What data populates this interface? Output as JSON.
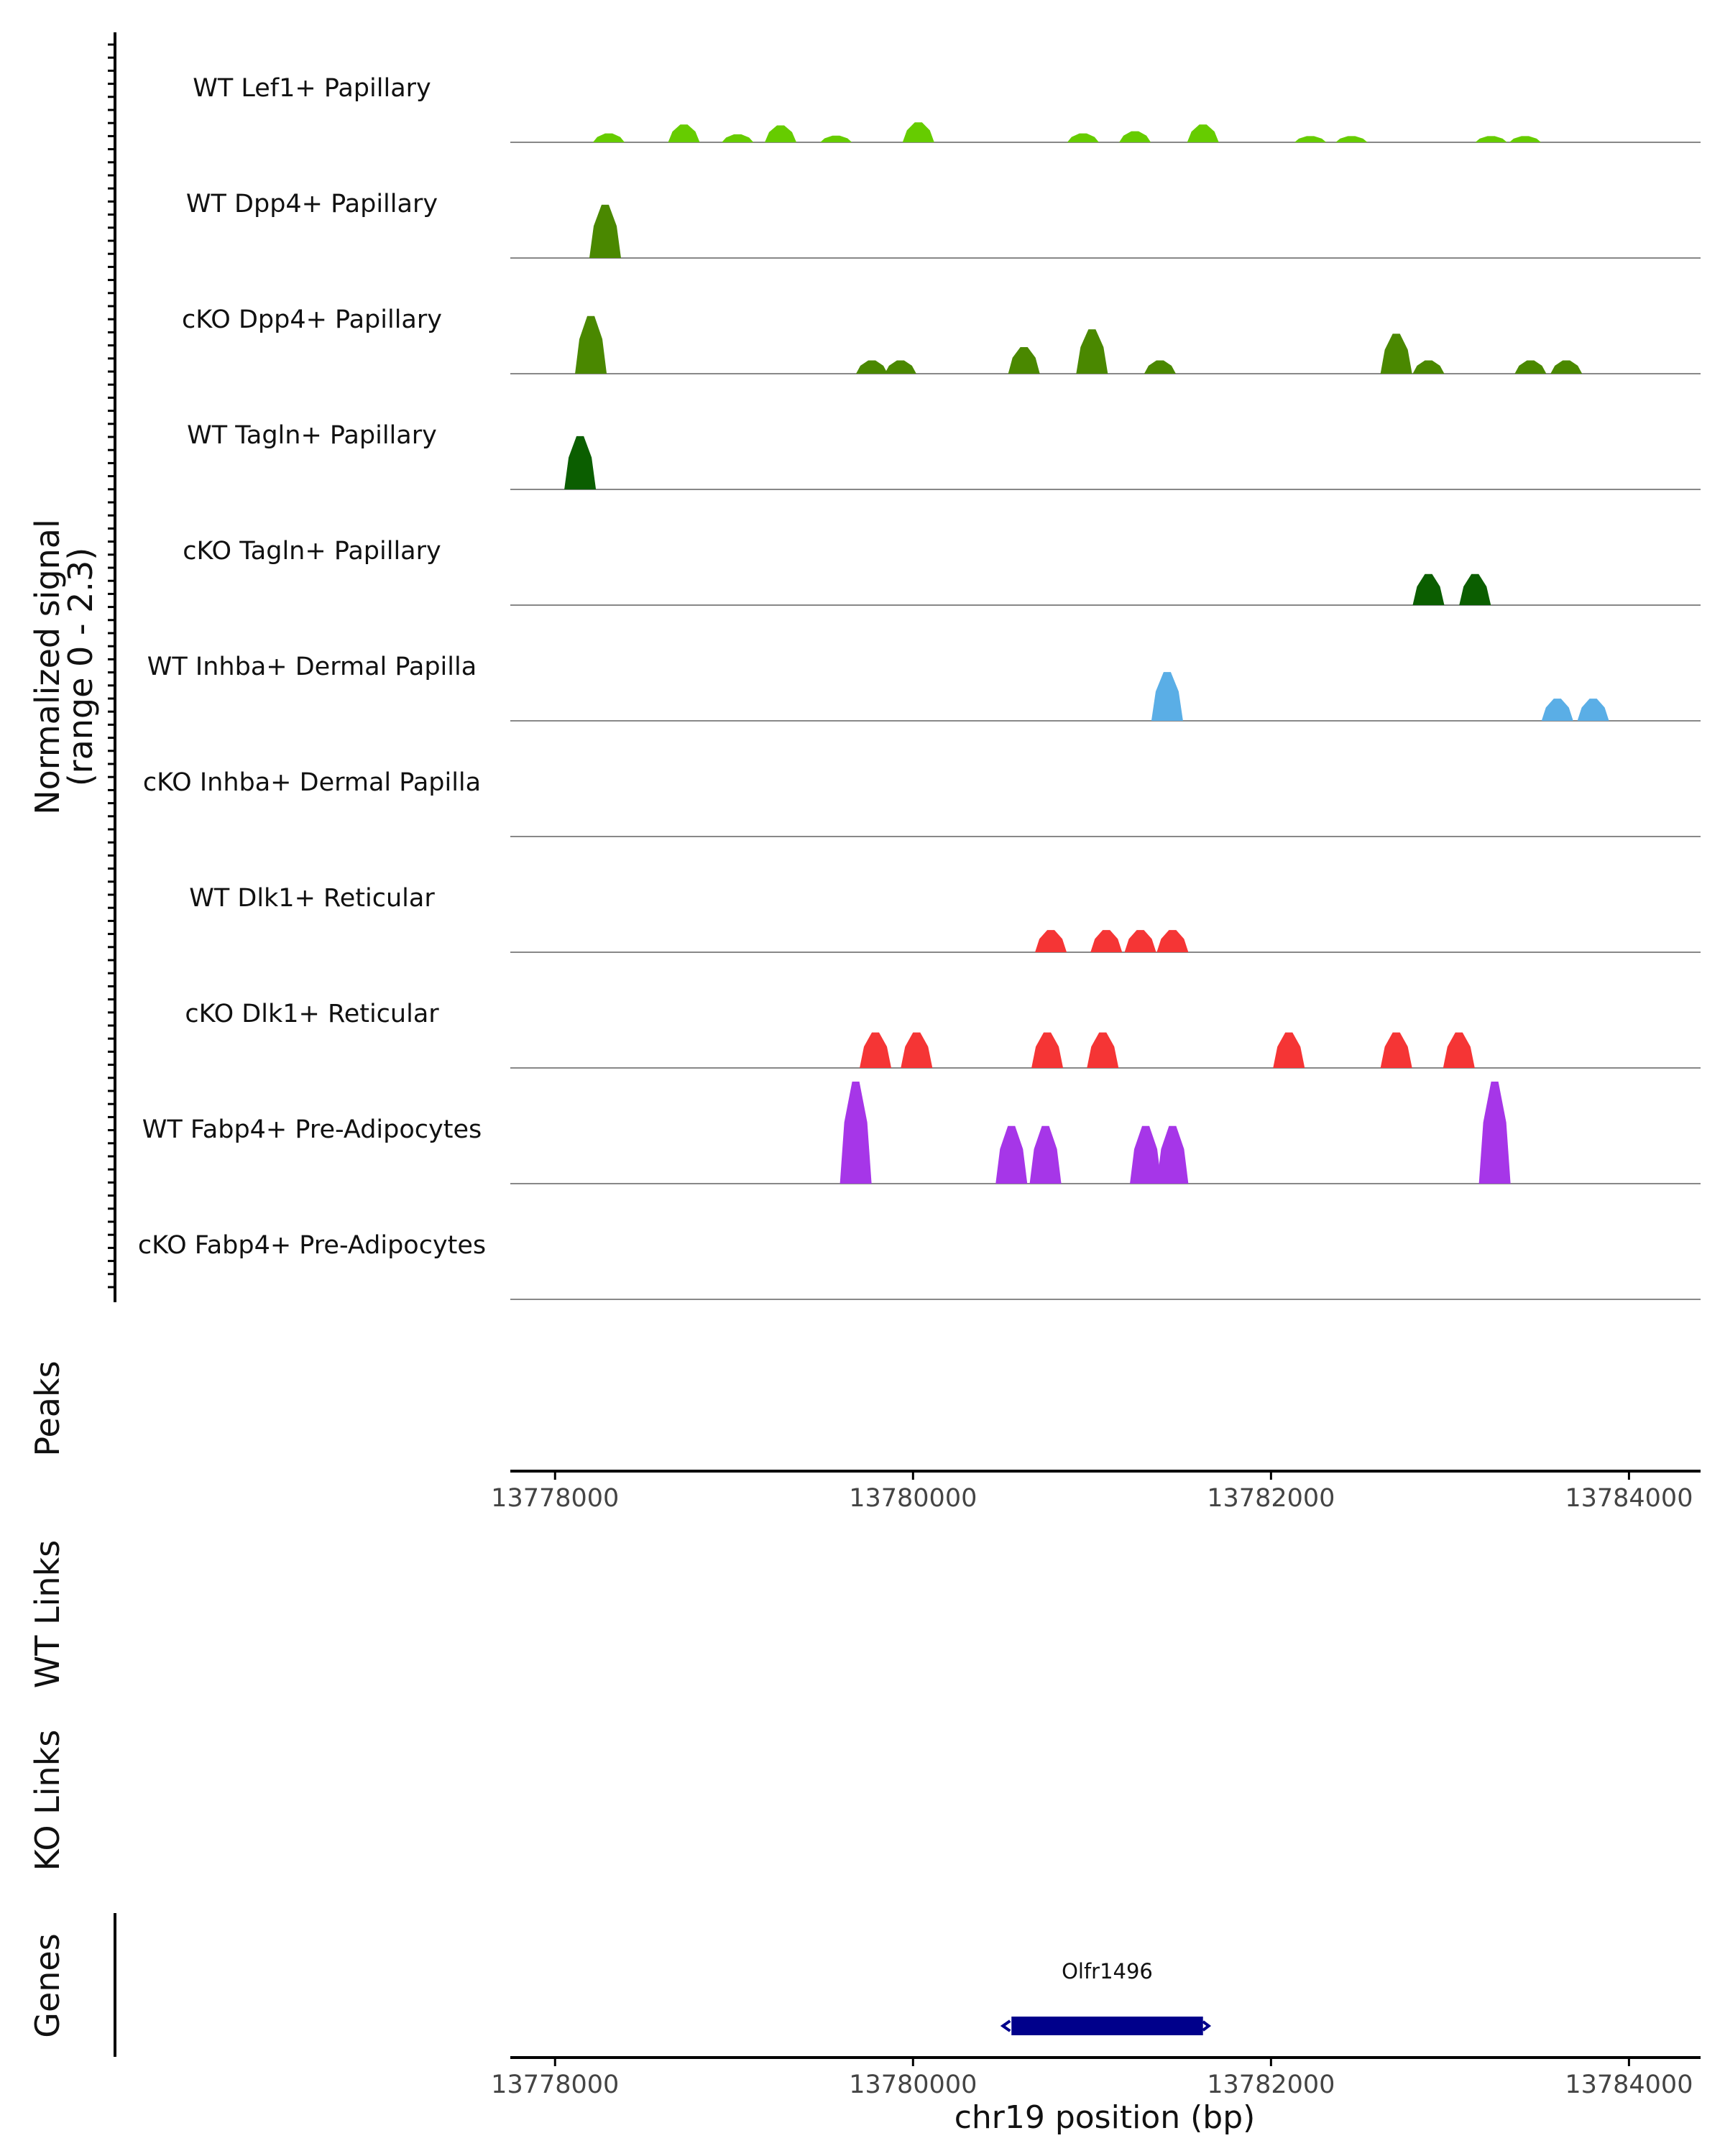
{
  "chart_data": {
    "type": "area",
    "title": "",
    "y_axis_label_line1": "Normalized signal",
    "y_axis_label_line2": "(range 0 - 2.3)",
    "y_range": [
      0,
      2.3
    ],
    "x_range": [
      13777750,
      13784400
    ],
    "x_ticks": [
      13778000,
      13780000,
      13782000,
      13784000
    ],
    "x_tick_labels": [
      "13778000",
      "13780000",
      "13782000",
      "13784000"
    ],
    "xlabel": "chr19 position (bp)",
    "peaks_label": "Peaks",
    "wt_links_label": "WT Links",
    "ko_links_label": "KO Links",
    "genes_label": "Genes",
    "gene": {
      "name": "Olfr1496",
      "start": 13780550,
      "end": 13781620,
      "strand": "-",
      "color": "#00008b"
    },
    "tracks": [
      {
        "name": "WT Lef1+ Papillary",
        "color": "#66cc00",
        "peaks": [
          [
            13778300,
            0.2
          ],
          [
            13778720,
            0.4
          ],
          [
            13779020,
            0.18
          ],
          [
            13779260,
            0.38
          ],
          [
            13779570,
            0.15
          ],
          [
            13780030,
            0.45
          ],
          [
            13780950,
            0.2
          ],
          [
            13781240,
            0.25
          ],
          [
            13781620,
            0.4
          ],
          [
            13782220,
            0.14
          ],
          [
            13782450,
            0.14
          ],
          [
            13783230,
            0.14
          ],
          [
            13783420,
            0.14
          ]
        ]
      },
      {
        "name": "WT Dpp4+ Papillary",
        "color": "#4a8800",
        "peaks": [
          [
            13778280,
            1.2
          ]
        ]
      },
      {
        "name": "cKO Dpp4+ Papillary",
        "color": "#4a8800",
        "peaks": [
          [
            13778200,
            1.3
          ],
          [
            13779770,
            0.3
          ],
          [
            13779930,
            0.3
          ],
          [
            13780620,
            0.6
          ],
          [
            13781000,
            1.0
          ],
          [
            13781380,
            0.3
          ],
          [
            13782700,
            0.9
          ],
          [
            13782880,
            0.3
          ],
          [
            13783450,
            0.3
          ],
          [
            13783650,
            0.3
          ]
        ]
      },
      {
        "name": "WT Tagln+ Papillary",
        "color": "#0b5e00",
        "peaks": [
          [
            13778140,
            1.2
          ]
        ]
      },
      {
        "name": "cKO Tagln+ Papillary",
        "color": "#0b5e00",
        "peaks": [
          [
            13782880,
            0.7
          ],
          [
            13783140,
            0.7
          ]
        ]
      },
      {
        "name": "WT Inhba+ Dermal Papilla",
        "color": "#5aaee6",
        "peaks": [
          [
            13781420,
            1.1
          ],
          [
            13783600,
            0.5
          ],
          [
            13783800,
            0.5
          ]
        ]
      },
      {
        "name": "cKO Inhba+ Dermal Papilla",
        "color": "#5aaee6",
        "peaks": []
      },
      {
        "name": "WT Dlk1+ Reticular",
        "color": "#f53535",
        "peaks": [
          [
            13780770,
            0.5
          ],
          [
            13781080,
            0.5
          ],
          [
            13781270,
            0.5
          ],
          [
            13781450,
            0.5
          ]
        ]
      },
      {
        "name": "cKO Dlk1+ Reticular",
        "color": "#f53535",
        "peaks": [
          [
            13779790,
            0.8
          ],
          [
            13780020,
            0.8
          ],
          [
            13780750,
            0.8
          ],
          [
            13781060,
            0.8
          ],
          [
            13782100,
            0.8
          ],
          [
            13782700,
            0.8
          ],
          [
            13783050,
            0.8
          ]
        ]
      },
      {
        "name": "WT Fabp4+ Pre-Adipocytes",
        "color": "#a636e8",
        "peaks": [
          [
            13779680,
            2.3
          ],
          [
            13780550,
            1.3
          ],
          [
            13780740,
            1.3
          ],
          [
            13781300,
            1.3
          ],
          [
            13781450,
            1.3
          ],
          [
            13783250,
            2.3
          ]
        ]
      },
      {
        "name": "cKO Fabp4+ Pre-Adipocytes",
        "color": "#a636e8",
        "peaks": []
      }
    ]
  }
}
